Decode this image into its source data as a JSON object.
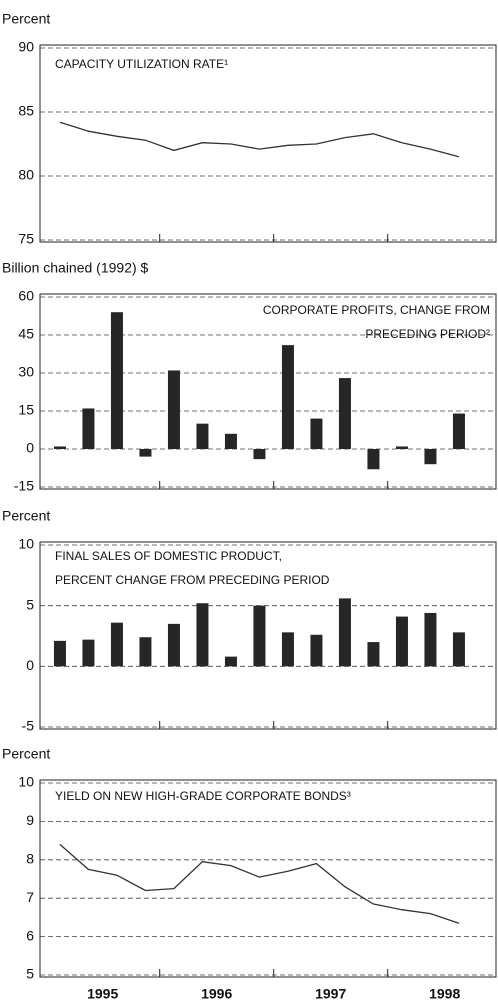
{
  "chart_data": [
    {
      "type": "line",
      "y_label": "Percent",
      "title": [
        "CAPACITY UTILIZATION RATE¹"
      ],
      "x": [
        1995.125,
        1995.375,
        1995.625,
        1995.875,
        1996.125,
        1996.375,
        1996.625,
        1996.875,
        1997.125,
        1997.375,
        1997.625,
        1997.875,
        1998.125,
        1998.375,
        1998.625
      ],
      "values": [
        84.2,
        83.5,
        83.1,
        82.8,
        82.0,
        82.6,
        82.5,
        82.1,
        82.4,
        82.5,
        83.0,
        83.3,
        82.6,
        82.1,
        81.5
      ],
      "color": "#333333",
      "xlim": [
        1994.95,
        1998.95
      ],
      "xminorticks": [
        1996,
        1997,
        1998
      ],
      "ylim": [
        75,
        90
      ],
      "yticks": [
        75,
        80,
        85,
        90
      ],
      "grid": true
    },
    {
      "type": "bar",
      "y_label": "Billion chained (1992) $",
      "title": [
        "CORPORATE PROFITS, CHANGE FROM",
        "PRECEDING PERIOD²"
      ],
      "x": [
        1995.125,
        1995.375,
        1995.625,
        1995.875,
        1996.125,
        1996.375,
        1996.625,
        1996.875,
        1997.125,
        1997.375,
        1997.625,
        1997.875,
        1998.125,
        1998.375,
        1998.625
      ],
      "values": [
        1,
        16,
        54,
        -3,
        31,
        10,
        6,
        -4,
        41,
        12,
        28,
        -8,
        1,
        -6,
        14
      ],
      "color": "#262626",
      "xlim": [
        1994.95,
        1998.95
      ],
      "xminorticks": [
        1996,
        1997,
        1998
      ],
      "ylim": [
        -15,
        60
      ],
      "yticks": [
        -15,
        0,
        15,
        30,
        45,
        60
      ],
      "grid": true
    },
    {
      "type": "bar",
      "y_label": "Percent",
      "title": [
        "FINAL SALES OF DOMESTIC PRODUCT,",
        "PERCENT CHANGE FROM PRECEDING PERIOD"
      ],
      "x": [
        1995.125,
        1995.375,
        1995.625,
        1995.875,
        1996.125,
        1996.375,
        1996.625,
        1996.875,
        1997.125,
        1997.375,
        1997.625,
        1997.875,
        1998.125,
        1998.375,
        1998.625
      ],
      "values": [
        2.1,
        2.2,
        3.6,
        2.4,
        3.5,
        5.2,
        0.8,
        5.0,
        2.8,
        2.6,
        5.6,
        2.0,
        4.1,
        4.4,
        2.8
      ],
      "color": "#262626",
      "xlim": [
        1994.95,
        1998.95
      ],
      "xminorticks": [
        1996,
        1997,
        1998
      ],
      "ylim": [
        -5,
        10
      ],
      "yticks": [
        -5,
        0,
        5,
        10
      ],
      "grid": true
    },
    {
      "type": "line",
      "y_label": "Percent",
      "title": [
        "YIELD ON NEW HIGH-GRADE CORPORATE BONDS³"
      ],
      "x": [
        1995.125,
        1995.375,
        1995.625,
        1995.875,
        1996.125,
        1996.375,
        1996.625,
        1996.875,
        1997.125,
        1997.375,
        1997.625,
        1997.875,
        1998.125,
        1998.375,
        1998.625
      ],
      "values": [
        8.4,
        7.75,
        7.6,
        7.2,
        7.25,
        7.95,
        7.85,
        7.55,
        7.7,
        7.9,
        7.3,
        6.85,
        6.7,
        6.6,
        6.35
      ],
      "color": "#333333",
      "xlim": [
        1994.95,
        1998.95
      ],
      "xminorticks": [
        1996,
        1997,
        1998
      ],
      "xticks": [
        {
          "value": 1995.5,
          "label": "1995"
        },
        {
          "value": 1996.5,
          "label": "1996"
        },
        {
          "value": 1997.5,
          "label": "1997"
        },
        {
          "value": 1998.5,
          "label": "1998"
        }
      ],
      "ylim": [
        5,
        10
      ],
      "yticks": [
        5,
        6,
        7,
        8,
        9,
        10
      ],
      "grid": true
    }
  ]
}
